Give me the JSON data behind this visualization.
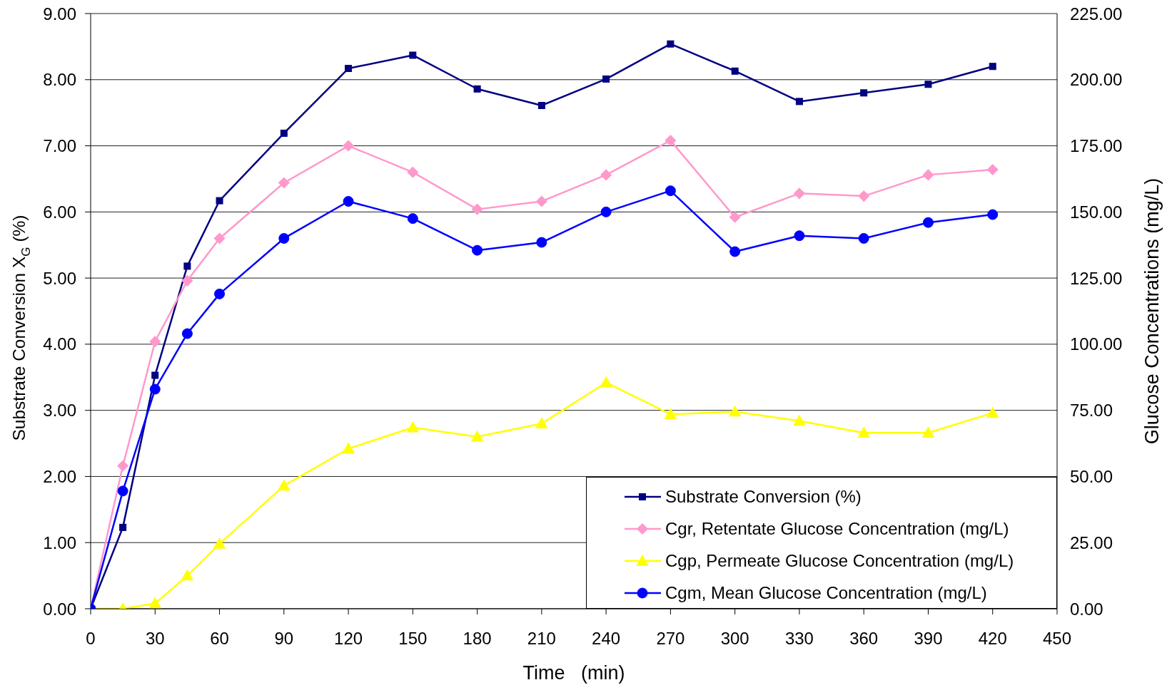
{
  "chart_data": {
    "type": "line",
    "xlabel": "Time   (min)",
    "ylabel": "Substrate Conversion X$_{G}$ (%)",
    "y2label": "Glucose Concentrations (mg/L)",
    "x": [
      0,
      15,
      30,
      45,
      60,
      90,
      120,
      150,
      180,
      210,
      240,
      270,
      300,
      330,
      360,
      390,
      420
    ],
    "xlim": [
      0,
      450
    ],
    "xticks": [
      0,
      30,
      60,
      90,
      120,
      150,
      180,
      210,
      240,
      270,
      300,
      330,
      360,
      390,
      420,
      450
    ],
    "ylim": [
      0,
      9
    ],
    "yticks": [
      {
        "value": 0,
        "label": "0.00"
      },
      {
        "value": 1,
        "label": "1.00"
      },
      {
        "value": 2,
        "label": "2.00"
      },
      {
        "value": 3,
        "label": "3.00"
      },
      {
        "value": 4,
        "label": "4.00"
      },
      {
        "value": 5,
        "label": "5.00"
      },
      {
        "value": 6,
        "label": "6.00"
      },
      {
        "value": 7,
        "label": "7.00"
      },
      {
        "value": 8,
        "label": "8.00"
      },
      {
        "value": 9,
        "label": "9.00"
      }
    ],
    "y2lim": [
      0,
      225
    ],
    "y2ticks": [
      {
        "value": 0,
        "label": "0.00"
      },
      {
        "value": 25,
        "label": "25.00"
      },
      {
        "value": 50,
        "label": "50.00"
      },
      {
        "value": 75,
        "label": "75.00"
      },
      {
        "value": 100,
        "label": "100.00"
      },
      {
        "value": 125,
        "label": "125.00"
      },
      {
        "value": 150,
        "label": "150.00"
      },
      {
        "value": 175,
        "label": "175.00"
      },
      {
        "value": 200,
        "label": "200.00"
      },
      {
        "value": 225,
        "label": "225.00"
      }
    ],
    "grid": "y",
    "legend": "bottom right",
    "line_style": "solid",
    "series": [
      {
        "name": "Substrate Conversion (%)",
        "color": "#000080",
        "marker": "square",
        "values": [
          0,
          1.23,
          3.53,
          5.18,
          6.17,
          7.19,
          8.17,
          8.37,
          7.86,
          7.61,
          8.01,
          8.54,
          8.13,
          7.67,
          7.8,
          7.93,
          8.2
        ]
      },
      {
        "name": "Cgr, Retentate Glucose Concentration (mg/L)",
        "color": "#ff99cc",
        "marker": "diamond",
        "axis": "y2",
        "values": [
          0,
          54,
          101,
          124,
          140,
          161,
          175,
          165,
          151,
          154,
          164,
          177,
          148,
          157,
          156,
          164,
          166
        ]
      },
      {
        "name": "Cgp, Permeate Glucose Concentration (mg/L)",
        "color": "#ffff00",
        "marker": "triangle",
        "axis": "y2",
        "values": [
          0,
          0,
          2,
          12.5,
          24.5,
          46.5,
          60.5,
          68.5,
          65,
          70,
          85.5,
          73.5,
          74.5,
          71,
          66.5,
          66.5,
          74
        ]
      },
      {
        "name": "Cgm, Mean Glucose Concentration (mg/L)",
        "color": "#0000ff",
        "marker": "circle",
        "axis": "y2",
        "values": [
          0,
          44.5,
          83,
          104,
          119,
          140,
          154,
          147.5,
          135.5,
          138.5,
          150,
          158,
          135,
          141,
          140,
          146,
          149
        ]
      }
    ]
  }
}
